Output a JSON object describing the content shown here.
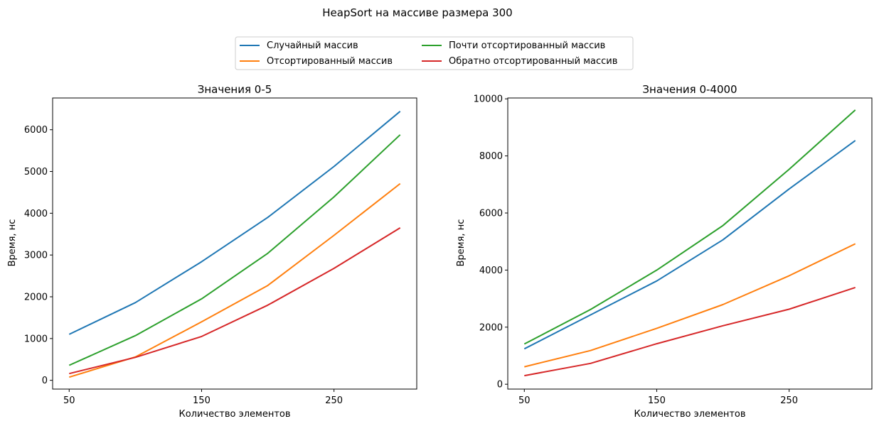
{
  "figure_title": "HeapSort на массиве размера 300",
  "legend": {
    "items": [
      {
        "label": "Случайный массив",
        "color": "#1f77b4"
      },
      {
        "label": "Отсортированный массив",
        "color": "#ff7f0e"
      },
      {
        "label": "Почти отсортированный массив",
        "color": "#2ca02c"
      },
      {
        "label": "Обратно отсортированный массив",
        "color": "#d62728"
      }
    ],
    "placement": "top-center",
    "columns": 2
  },
  "chart_data": [
    {
      "type": "line",
      "title": "Значения 0-5",
      "xlabel": "Количество элементов",
      "ylabel": "Время, нс",
      "x": [
        50,
        100,
        150,
        200,
        250,
        300
      ],
      "xticks": [
        50,
        150,
        250
      ],
      "xlim": [
        37.5,
        312.5
      ],
      "yticks": [
        0,
        1000,
        2000,
        3000,
        4000,
        5000,
        6000
      ],
      "ylim": [
        -210,
        6760
      ],
      "grid": false,
      "series": [
        {
          "name": "Случайный массив",
          "color": "#1f77b4",
          "values": [
            1100,
            1860,
            2840,
            3900,
            5120,
            6440
          ]
        },
        {
          "name": "Отсортированный массив",
          "color": "#ff7f0e",
          "values": [
            75,
            560,
            1400,
            2270,
            3470,
            4710
          ]
        },
        {
          "name": "Почти отсортированный массив",
          "color": "#2ca02c",
          "values": [
            360,
            1070,
            1950,
            3040,
            4390,
            5880
          ]
        },
        {
          "name": "Обратно отсортированный массив",
          "color": "#d62728",
          "values": [
            160,
            550,
            1050,
            1800,
            2680,
            3650
          ]
        }
      ]
    },
    {
      "type": "line",
      "title": "Значения 0-4000",
      "xlabel": "Количество элементов",
      "ylabel": "Время, нс",
      "x": [
        50,
        100,
        150,
        200,
        250,
        300
      ],
      "xticks": [
        50,
        150,
        250
      ],
      "xlim": [
        37.5,
        312.5
      ],
      "yticks": [
        0,
        2000,
        4000,
        6000,
        8000,
        10000
      ],
      "ylim": [
        -170,
        10030
      ],
      "grid": false,
      "series": [
        {
          "name": "Случайный массив",
          "color": "#1f77b4",
          "values": [
            1240,
            2430,
            3620,
            5060,
            6840,
            8540
          ]
        },
        {
          "name": "Отсортированный массив",
          "color": "#ff7f0e",
          "values": [
            610,
            1180,
            1960,
            2790,
            3800,
            4920
          ]
        },
        {
          "name": "Почти отсортированный массив",
          "color": "#2ca02c",
          "values": [
            1410,
            2620,
            4000,
            5560,
            7530,
            9610
          ]
        },
        {
          "name": "Обратно отсортированный массив",
          "color": "#d62728",
          "values": [
            300,
            730,
            1420,
            2050,
            2630,
            3390
          ]
        }
      ]
    }
  ]
}
